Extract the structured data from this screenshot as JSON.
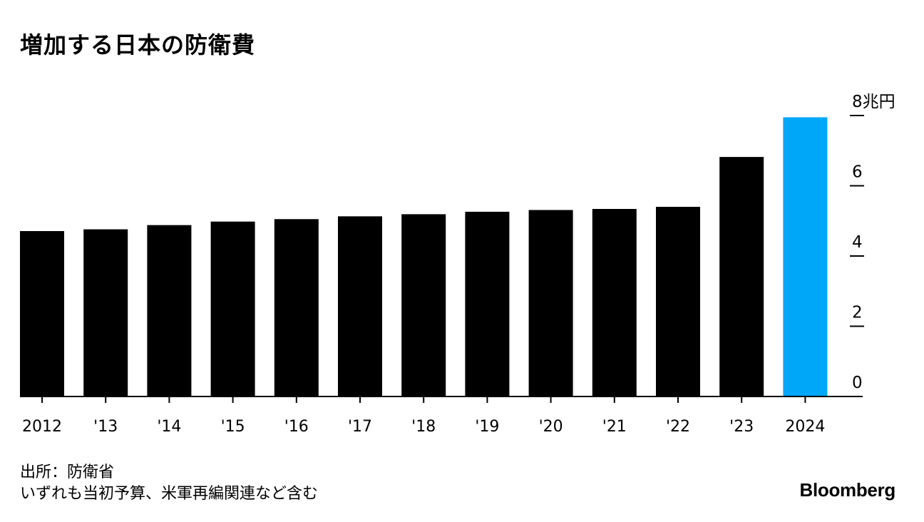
{
  "title": "増加する日本の防衛費",
  "source": "出所：防衛省",
  "note": "いずれも当初予算、米軍再編関連など含む",
  "brand": "Bloomberg",
  "colors": {
    "bar": "#000000",
    "highlight": "#00a7f8",
    "background": "#ffffff"
  },
  "chart_data": {
    "type": "bar",
    "categories": [
      "2012",
      "'13",
      "'14",
      "'15",
      "'16",
      "'17",
      "'18",
      "'19",
      "'20",
      "'21",
      "'22",
      "'23",
      "2024"
    ],
    "values": [
      4.71,
      4.76,
      4.88,
      4.98,
      5.05,
      5.13,
      5.19,
      5.26,
      5.31,
      5.34,
      5.4,
      6.82,
      7.95
    ],
    "highlight_index": 12,
    "y_ticks": [
      0,
      2,
      4,
      6,
      8
    ],
    "y_tick_labels": [
      "0",
      "2",
      "4",
      "6",
      "8兆円"
    ],
    "ylim": [
      0,
      8
    ],
    "y_axis_position": "right"
  }
}
